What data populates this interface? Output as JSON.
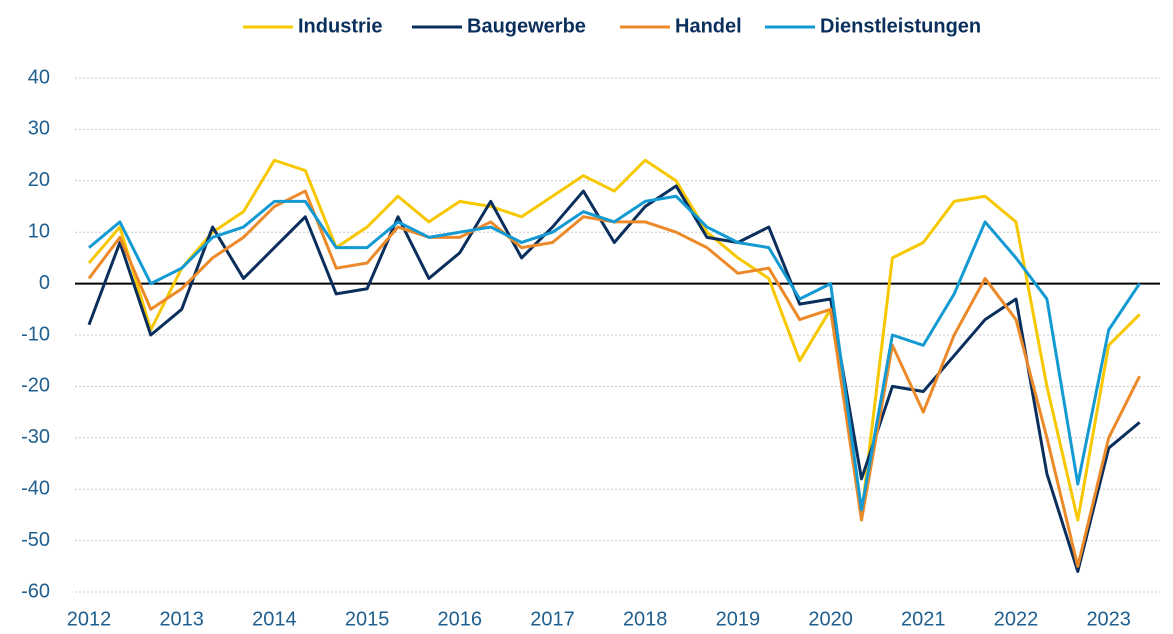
{
  "chart_data": {
    "type": "line",
    "categories": [
      "2012",
      null,
      null,
      "2013",
      null,
      null,
      "2014",
      null,
      null,
      "2015",
      null,
      null,
      "2016",
      null,
      null,
      "2017",
      null,
      null,
      "2018",
      null,
      null,
      "2019",
      null,
      null,
      "2020",
      null,
      null,
      "2021",
      null,
      null,
      "2022",
      null,
      null,
      "2023",
      null
    ],
    "series": [
      {
        "name": "Industrie",
        "color": "#f7c800",
        "values": [
          4,
          11,
          -9,
          3,
          10,
          14,
          24,
          22,
          7,
          11,
          17,
          12,
          16,
          15,
          13,
          17,
          21,
          18,
          24,
          20,
          10,
          5,
          1,
          -15,
          -5,
          -45,
          5,
          8,
          16,
          17,
          12,
          -20,
          -46,
          -12,
          -6
        ]
      },
      {
        "name": "Baugewerbe",
        "color": "#0a2f5c",
        "values": [
          -8,
          8,
          -10,
          -5,
          11,
          1,
          7,
          13,
          -2,
          -1,
          13,
          1,
          6,
          16,
          5,
          11,
          18,
          8,
          15,
          19,
          9,
          8,
          11,
          -4,
          -3,
          -38,
          -20,
          -21,
          -14,
          -7,
          -3,
          -37,
          -56,
          -32,
          -27
        ]
      },
      {
        "name": "Handel",
        "color": "#ec8a2a",
        "values": [
          1,
          9,
          -5,
          -1,
          5,
          9,
          15,
          18,
          3,
          4,
          11,
          9,
          9,
          12,
          7,
          8,
          13,
          12,
          12,
          10,
          7,
          2,
          3,
          -7,
          -5,
          -46,
          -12,
          -25,
          -10,
          1,
          -7,
          -30,
          -55,
          -30,
          -18
        ]
      },
      {
        "name": "Dienstleistungen",
        "color": "#149ad2",
        "values": [
          7,
          12,
          0,
          3,
          9,
          11,
          16,
          16,
          7,
          7,
          12,
          9,
          10,
          11,
          8,
          10,
          14,
          12,
          16,
          17,
          11,
          8,
          7,
          -3,
          0,
          -44,
          -10,
          -12,
          -2,
          12,
          5,
          -3,
          -39,
          -9,
          0
        ]
      }
    ],
    "ylim": [
      -60,
      40
    ],
    "yticks": [
      40,
      30,
      20,
      10,
      0,
      -10,
      -20,
      -30,
      -40,
      -50,
      -60
    ],
    "grid": true,
    "legend": "top"
  }
}
